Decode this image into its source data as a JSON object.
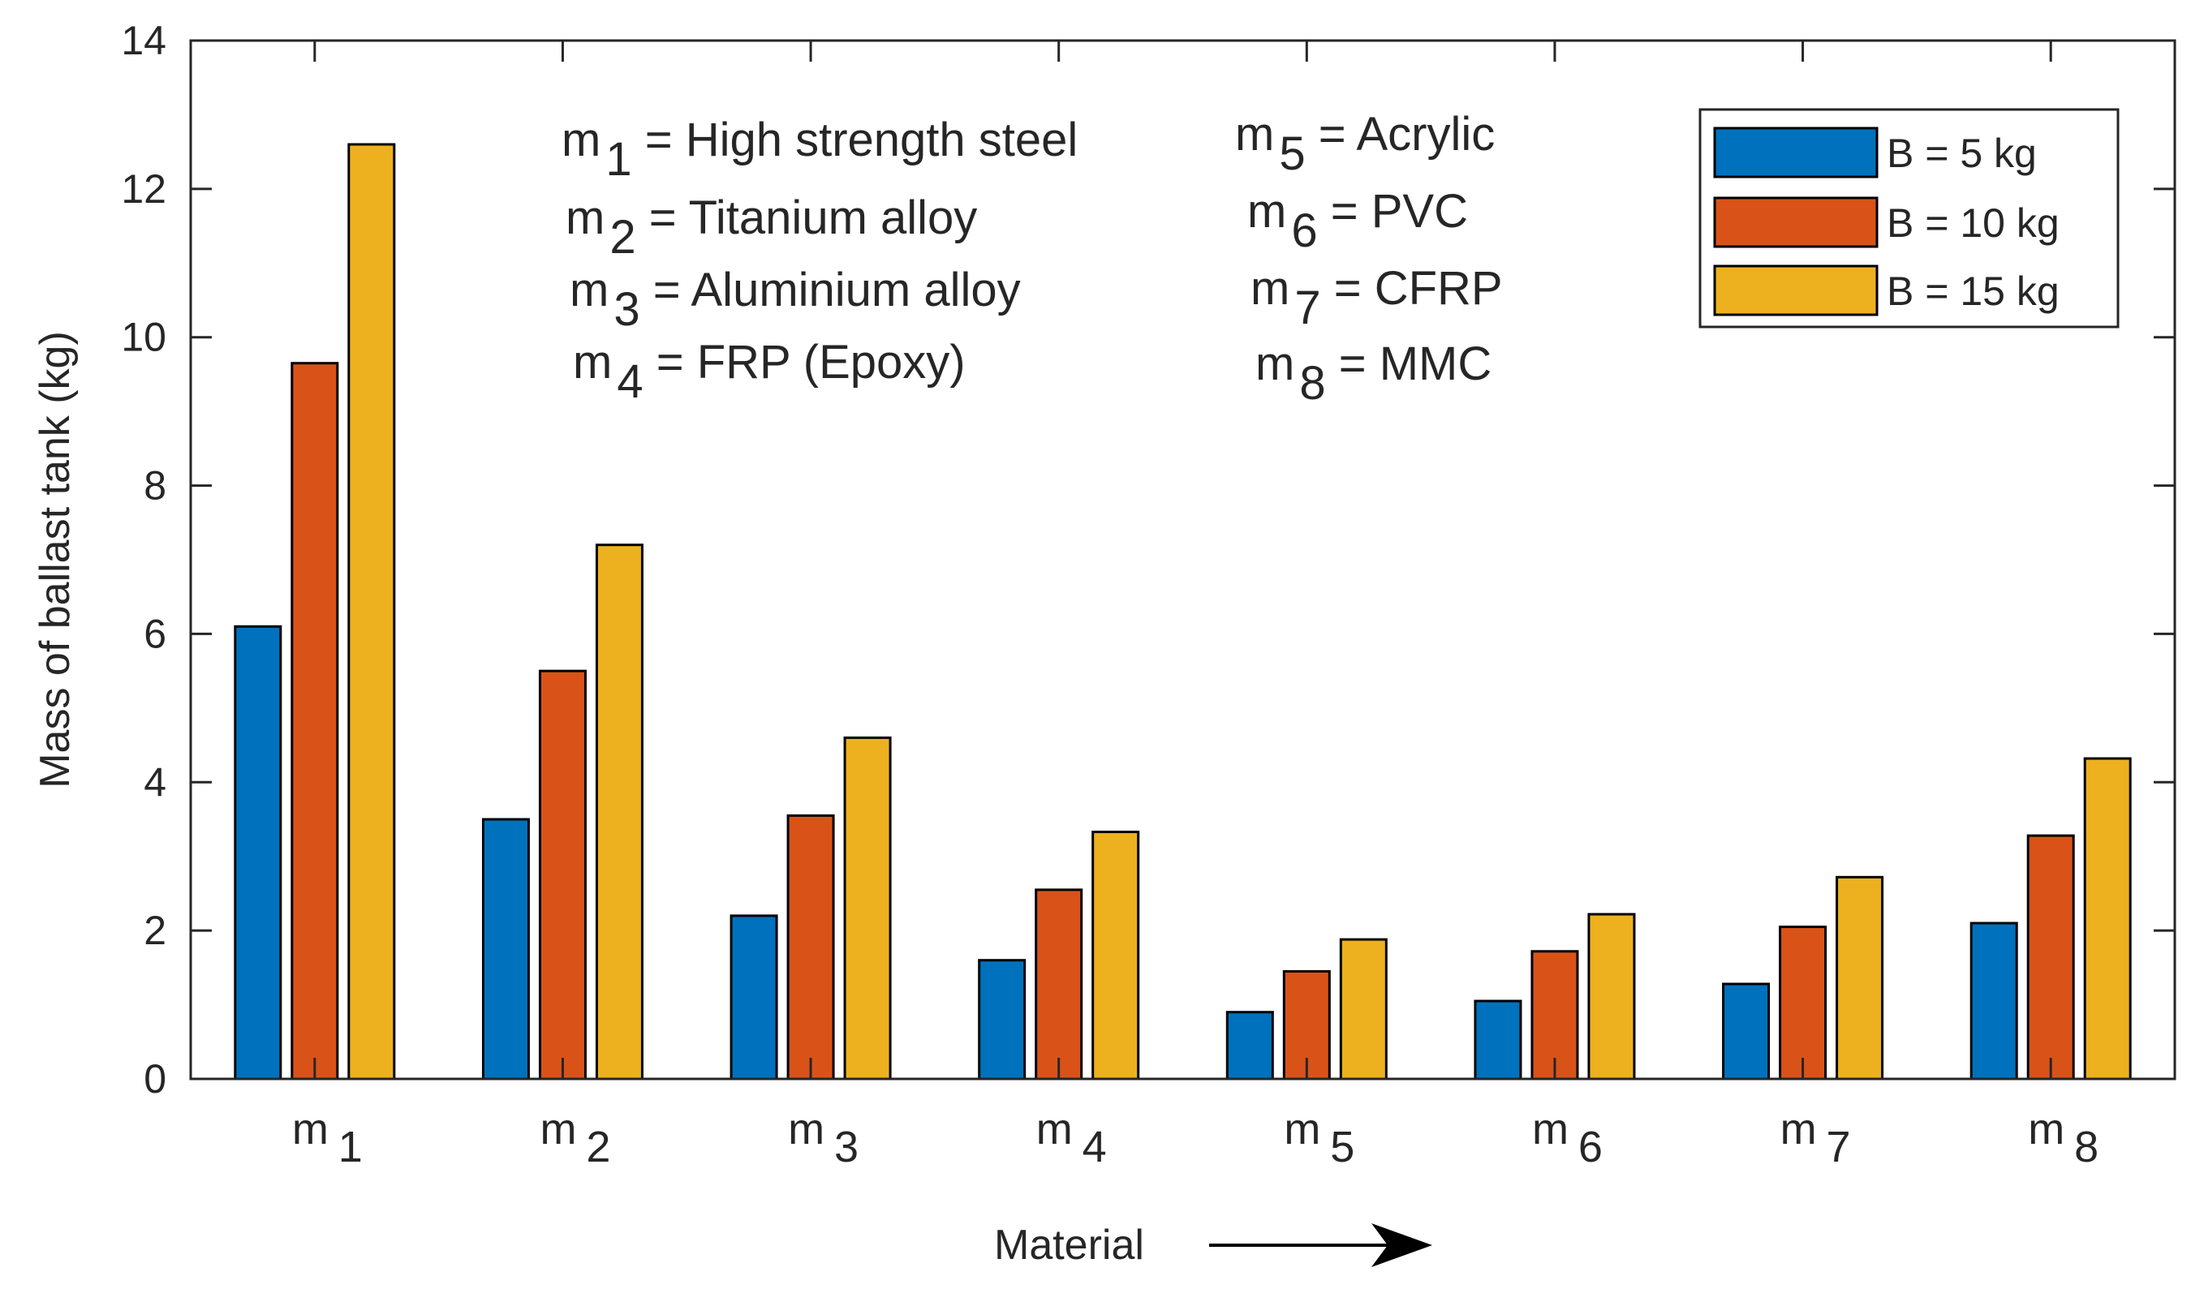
{
  "chart_data": {
    "type": "bar",
    "title": "",
    "xlabel": "Material",
    "ylabel": "Mass of ballast tank (kg)",
    "ylim": [
      0,
      14
    ],
    "yticks": [
      0,
      2,
      4,
      6,
      8,
      10,
      12,
      14
    ],
    "categories": [
      {
        "base": "m",
        "sub": "1"
      },
      {
        "base": "m",
        "sub": "2"
      },
      {
        "base": "m",
        "sub": "3"
      },
      {
        "base": "m",
        "sub": "4"
      },
      {
        "base": "m",
        "sub": "5"
      },
      {
        "base": "m",
        "sub": "6"
      },
      {
        "base": "m",
        "sub": "7"
      },
      {
        "base": "m",
        "sub": "8"
      }
    ],
    "series": [
      {
        "name": "B = 5 kg",
        "color": "#0072BD",
        "values": [
          6.1,
          3.5,
          2.2,
          1.6,
          0.9,
          1.05,
          1.28,
          2.1
        ]
      },
      {
        "name": "B = 10 kg",
        "color": "#D95319",
        "values": [
          9.65,
          5.5,
          3.55,
          2.55,
          1.45,
          1.72,
          2.05,
          3.28
        ]
      },
      {
        "name": "B = 15 kg",
        "color": "#EDB120",
        "values": [
          12.6,
          7.2,
          4.6,
          3.33,
          1.88,
          2.22,
          2.72,
          4.32
        ]
      }
    ],
    "legend_position": "top-right",
    "grid": false,
    "annotations": [
      {
        "base": "m",
        "sub": "1",
        "text": " = High strength steel"
      },
      {
        "base": "m",
        "sub": "2",
        "text": " = Titanium alloy"
      },
      {
        "base": "m",
        "sub": "3",
        "text": " = Aluminium alloy"
      },
      {
        "base": "m",
        "sub": "4",
        "text": " = FRP (Epoxy)"
      },
      {
        "base": "m",
        "sub": "5",
        "text": " = Acrylic"
      },
      {
        "base": "m",
        "sub": "6",
        "text": " = PVC"
      },
      {
        "base": "m",
        "sub": "7",
        "text": " = CFRP"
      },
      {
        "base": "m",
        "sub": "8",
        "text": " = MMC"
      }
    ]
  },
  "colors": {
    "axis": "#262626",
    "background": "#ffffff"
  }
}
